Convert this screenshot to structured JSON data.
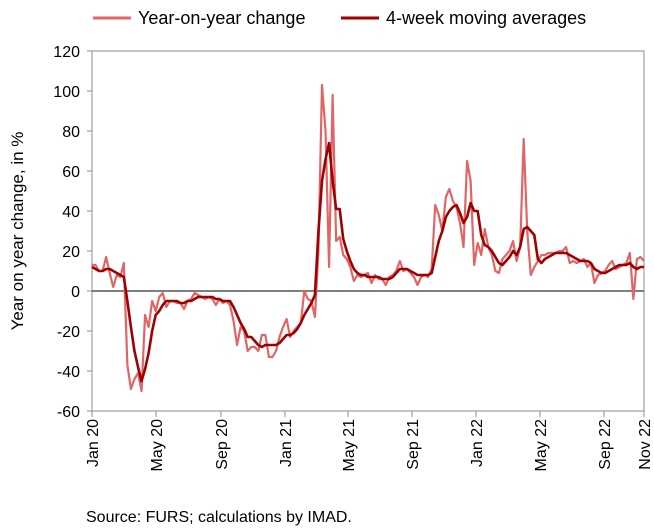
{
  "chart_data": {
    "type": "line",
    "ylabel": "Year on year change, in %",
    "ylim": [
      -60,
      120
    ],
    "yticks": [
      -60,
      -40,
      -20,
      0,
      20,
      40,
      60,
      80,
      100,
      120
    ],
    "xticks": [
      "Jan 20",
      "May 20",
      "Sep 20",
      "Jan 21",
      "May 21",
      "Sep 21",
      "Jan 22",
      "May 22",
      "Sep 22",
      "Nov 22"
    ],
    "legend_position": "top",
    "source": "Source: FURS; calculations by IMAD.",
    "series": [
      {
        "name": "Year-on-year change",
        "color": "#e06666",
        "values": [
          13,
          13,
          10,
          10,
          17,
          9,
          2,
          8,
          7,
          14,
          -37,
          -49,
          -44,
          -41,
          -50,
          -12,
          -18,
          -5,
          -10,
          -3,
          -1,
          -8,
          -5,
          -5,
          -6,
          -6,
          -9,
          -5,
          -4,
          -1,
          -2,
          -3,
          -4,
          -3,
          -4,
          -7,
          -4,
          -6,
          -5,
          -7,
          -15,
          -27,
          -18,
          -20,
          -30,
          -28,
          -28,
          -30,
          -22,
          -22,
          -33,
          -33,
          -30,
          -23,
          -18,
          -14,
          -23,
          -20,
          -18,
          -16,
          0,
          -4,
          -5,
          -13,
          20,
          103,
          80,
          12,
          98,
          25,
          27,
          18,
          16,
          12,
          5,
          8,
          7,
          8,
          9,
          4,
          8,
          6,
          6,
          3,
          7,
          8,
          10,
          15,
          10,
          11,
          9,
          7,
          3,
          7,
          8,
          7,
          11,
          43,
          38,
          30,
          47,
          51,
          45,
          42,
          34,
          22,
          65,
          55,
          13,
          24,
          18,
          31,
          22,
          18,
          10,
          9,
          16,
          18,
          20,
          25,
          15,
          22,
          76,
          30,
          8,
          12,
          15,
          18,
          18,
          19,
          19,
          19,
          20,
          20,
          22,
          14,
          15,
          14,
          15,
          16,
          12,
          14,
          4,
          8,
          9,
          10,
          13,
          15,
          11,
          12,
          13,
          14,
          19,
          -4,
          16,
          17,
          15
        ],
        "note": ""
      },
      {
        "name": "4-week moving averages",
        "color": "#a00000",
        "values": [
          12,
          11,
          10,
          10,
          11,
          11,
          10,
          9,
          8,
          7,
          -5,
          -18,
          -30,
          -38,
          -45,
          -39,
          -31,
          -20,
          -12,
          -10,
          -7,
          -5,
          -5,
          -5,
          -5,
          -6,
          -6,
          -5,
          -5,
          -4,
          -3,
          -3,
          -3,
          -3,
          -3,
          -4,
          -4,
          -5,
          -5,
          -5,
          -8,
          -12,
          -16,
          -19,
          -23,
          -23,
          -25,
          -27,
          -28,
          -27,
          -27,
          -27,
          -27,
          -26,
          -24,
          -22,
          -22,
          -21,
          -19,
          -16,
          -12,
          -9,
          -6,
          -2,
          30,
          55,
          66,
          74,
          55,
          41,
          41,
          26,
          20,
          15,
          11,
          9,
          8,
          8,
          7,
          7,
          7,
          7,
          6,
          6,
          6,
          7,
          9,
          11,
          11,
          11,
          10,
          9,
          8,
          8,
          8,
          8,
          9,
          17,
          25,
          30,
          37,
          40,
          42,
          43,
          39,
          34,
          37,
          44,
          40,
          40,
          28,
          23,
          22,
          20,
          17,
          14,
          13,
          15,
          17,
          20,
          18,
          22,
          31,
          32,
          30,
          28,
          16,
          14,
          16,
          17,
          18,
          19,
          19,
          19,
          19,
          18,
          17,
          16,
          15,
          15,
          15,
          14,
          11,
          10,
          9,
          9,
          10,
          11,
          12,
          13,
          13,
          13,
          14,
          12,
          11,
          12,
          12
        ]
      }
    ]
  }
}
